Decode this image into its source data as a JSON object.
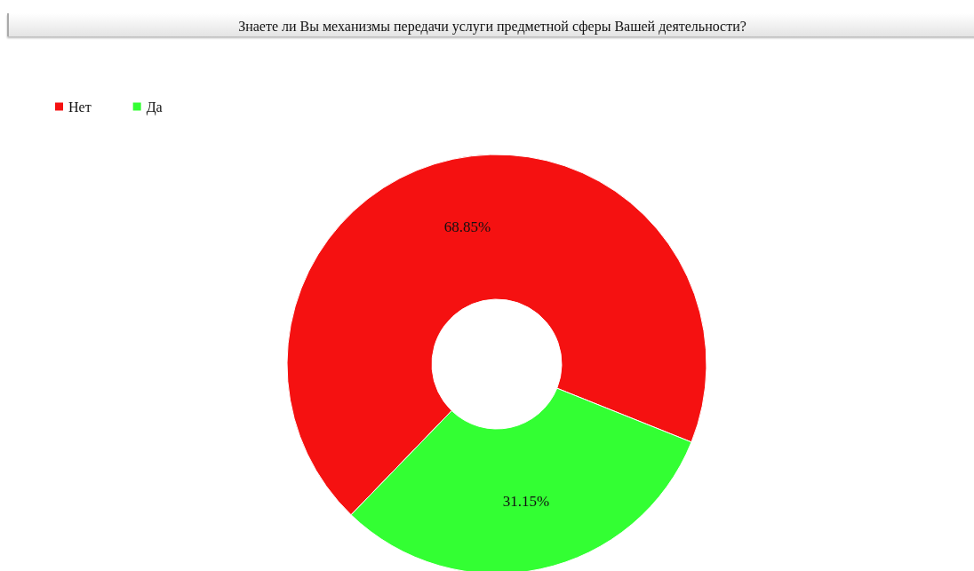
{
  "chart_data": {
    "type": "donut",
    "title": "Знаете ли Вы механизмы передачи услуги предметной сферы Вашей деятельности?",
    "categories": [
      "Нет",
      "Да"
    ],
    "values": [
      68.85,
      31.15
    ],
    "colors": [
      "#f51111",
      "#33ff33"
    ],
    "value_labels": [
      "68.85%",
      "31.15%"
    ],
    "legend": "top left"
  }
}
